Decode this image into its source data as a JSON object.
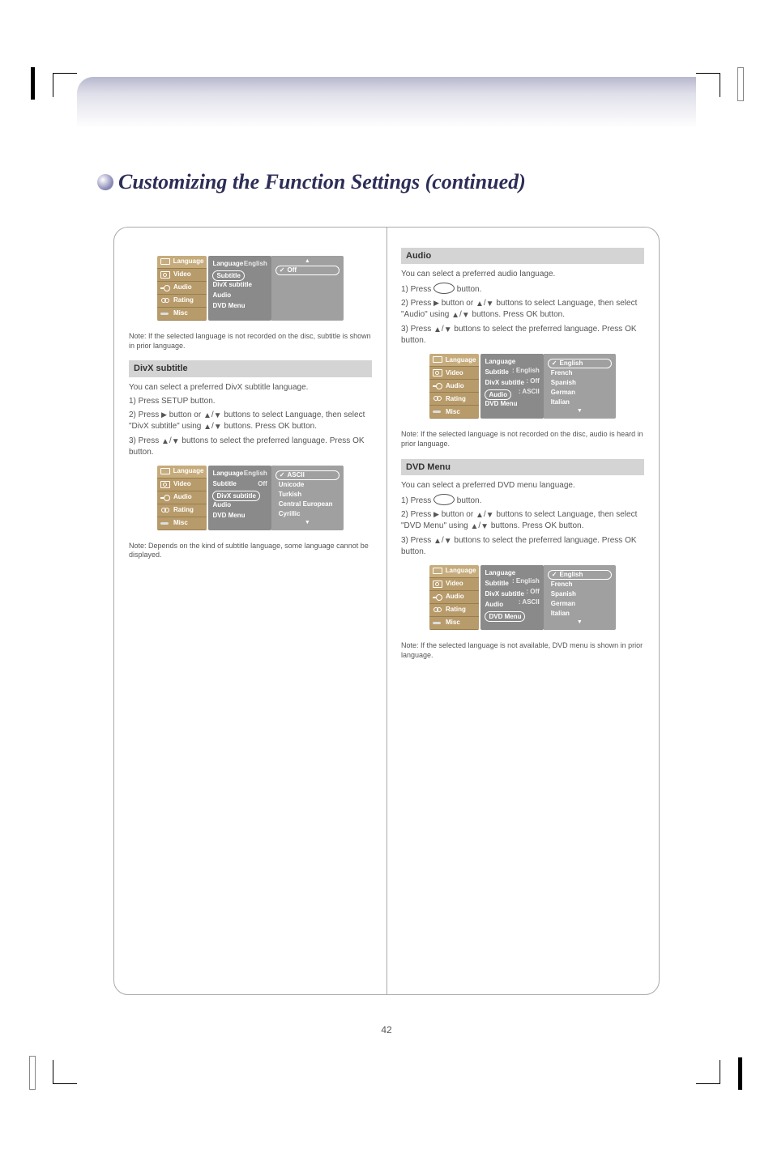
{
  "page": {
    "title": "Customizing the Function Settings (continued)",
    "number": "42"
  },
  "tabs": {
    "language": "Language",
    "video": "Video",
    "audio": "Audio",
    "rating": "Rating",
    "misc": "Misc"
  },
  "midcol": {
    "language": "Language",
    "subtitle": "Subtitle",
    "divx": "DivX subtitle",
    "audio": "Audio",
    "dvdmenu": "DVD Menu"
  },
  "valstatic": {
    "english": ": English",
    "off": ": Off",
    "ascii": ": ASCII"
  },
  "left": {
    "osd1": {
      "mid_head": "English",
      "val_sel": "Off"
    },
    "note1": "Note: If the selected language is not recorded on the disc, subtitle is shown in prior language.",
    "section": "DivX subtitle",
    "intro": "You can select a preferred DivX subtitle language.",
    "s1": "1) Press SETUP button.",
    "s2_a": "2) Press ",
    "s2_b": " button or ",
    "s2_c": " buttons to select Language, then select \"DivX subtitle\" using ",
    "s2_d": " buttons. Press OK button.",
    "s3_a": "3) Press ",
    "s3_b": " buttons to select the preferred language. Press OK button.",
    "osd2": {
      "mid_head": "English",
      "mid_sub_off": "Off",
      "items": [
        "ASCII",
        "Unicode",
        "Turkish",
        "Central European",
        "Cyrillic"
      ]
    },
    "note2": "Note: Depends on the kind of subtitle language, some language cannot be displayed."
  },
  "right": {
    "sectionA": "Audio",
    "introA": "You can select a preferred audio language.",
    "a1_a": "1) Press ",
    "a1_b": " button.",
    "a2_a": "2) Press ",
    "a2_b": " button or ",
    "a2_c": " buttons to select Language, then select \"Audio\" using ",
    "a2_d": " buttons. Press OK button.",
    "a3_a": "3) Press ",
    "a3_b": " buttons to select the preferred language. Press OK button.",
    "osdA_items": [
      "English",
      "French",
      "Spanish",
      "German",
      "Italian"
    ],
    "noteA": "Note: If the selected language is not recorded on the disc, audio is heard in prior language.",
    "sectionB": "DVD Menu",
    "introB": "You can select a preferred DVD menu language.",
    "b1_a": "1) Press ",
    "b1_b": " button.",
    "b2_a": "2) Press ",
    "b2_b": " button or ",
    "b2_c": " buttons to select Language, then select \"DVD Menu\" using ",
    "b2_d": " buttons. Press OK button.",
    "b3_a": "3) Press ",
    "b3_b": " buttons to select the preferred language. Press OK button.",
    "osdB_items": [
      "English",
      "French",
      "Spanish",
      "German",
      "Italian"
    ],
    "noteB": "Note: If the selected language is not available, DVD menu is shown in prior language."
  }
}
